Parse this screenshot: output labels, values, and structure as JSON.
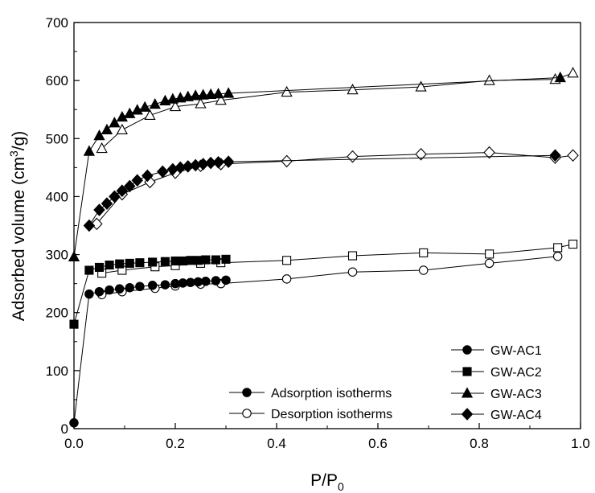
{
  "chart_data": {
    "type": "scatter",
    "xlabel": "P/P",
    "xlabel_sub": "0",
    "ylabel": "Adsorbed volume (cm",
    "ylabel_sup": "3",
    "ylabel_end": "/g)",
    "xlim": [
      0.0,
      1.0
    ],
    "ylim": [
      0,
      700
    ],
    "xticks": [
      "0.0",
      "0.2",
      "0.4",
      "0.6",
      "0.8",
      "1.0"
    ],
    "xtick_values": [
      0.0,
      0.2,
      0.4,
      0.6,
      0.8,
      1.0
    ],
    "yticks": [
      "0",
      "100",
      "200",
      "300",
      "400",
      "500",
      "600",
      "700"
    ],
    "ytick_values": [
      0,
      100,
      200,
      300,
      400,
      500,
      600,
      700
    ],
    "grid": false,
    "legend_samples": [
      "GW-AC1",
      "GW-AC2",
      "GW-AC3",
      "GW-AC4"
    ],
    "legend_branches": [
      "Adsorption isotherms",
      "Desorption isotherms"
    ],
    "legend_position": "bottom-right",
    "series": [
      {
        "name": "GW-AC1",
        "marker": "circle",
        "adsorption": {
          "x": [
            0.0,
            0.03,
            0.05,
            0.07,
            0.09,
            0.11,
            0.13,
            0.155,
            0.18,
            0.2,
            0.215,
            0.23,
            0.245,
            0.26,
            0.28,
            0.3
          ],
          "y": [
            10,
            232,
            236,
            239,
            241,
            243,
            245,
            247,
            248,
            250,
            251,
            252,
            253,
            254,
            255,
            256
          ]
        },
        "desorption": {
          "x": [
            0.955,
            0.82,
            0.69,
            0.55,
            0.42,
            0.29,
            0.25,
            0.2,
            0.16,
            0.095,
            0.055
          ],
          "y": [
            297,
            285,
            273,
            270,
            258,
            250,
            249,
            246,
            242,
            236,
            231
          ]
        }
      },
      {
        "name": "GW-AC2",
        "marker": "square",
        "adsorption": {
          "x": [
            0.0,
            0.03,
            0.05,
            0.07,
            0.09,
            0.11,
            0.13,
            0.155,
            0.18,
            0.2,
            0.215,
            0.23,
            0.245,
            0.26,
            0.28,
            0.3
          ],
          "y": [
            180,
            273,
            278,
            282,
            284,
            285,
            286,
            287,
            288,
            289,
            289,
            290,
            290,
            291,
            291,
            292
          ]
        },
        "desorption": {
          "x": [
            0.985,
            0.955,
            0.82,
            0.69,
            0.55,
            0.42,
            0.29,
            0.25,
            0.2,
            0.16,
            0.095,
            0.055
          ],
          "y": [
            318,
            312,
            301,
            303,
            298,
            290,
            286,
            285,
            281,
            279,
            273,
            268
          ]
        }
      },
      {
        "name": "GW-AC3",
        "marker": "triangle",
        "adsorption": {
          "x": [
            0.0,
            0.03,
            0.05,
            0.065,
            0.08,
            0.095,
            0.11,
            0.125,
            0.14,
            0.16,
            0.18,
            0.195,
            0.21,
            0.225,
            0.24,
            0.255,
            0.27,
            0.285,
            0.305,
            0.96
          ],
          "y": [
            296,
            478,
            505,
            515,
            527,
            537,
            543,
            549,
            554,
            559,
            565,
            568,
            570,
            572,
            574,
            575,
            576,
            577,
            578,
            605
          ]
        },
        "desorption": {
          "x": [
            0.985,
            0.95,
            0.82,
            0.685,
            0.55,
            0.42,
            0.29,
            0.25,
            0.2,
            0.15,
            0.095,
            0.055
          ],
          "y": [
            613,
            602,
            600,
            589,
            584,
            580,
            566,
            560,
            555,
            540,
            515,
            483
          ]
        }
      },
      {
        "name": "GW-AC4",
        "marker": "diamond",
        "adsorption": {
          "x": [
            0.03,
            0.05,
            0.065,
            0.08,
            0.095,
            0.11,
            0.125,
            0.145,
            0.175,
            0.195,
            0.21,
            0.225,
            0.24,
            0.255,
            0.27,
            0.285,
            0.305,
            0.95
          ],
          "y": [
            350,
            377,
            388,
            400,
            410,
            418,
            428,
            436,
            443,
            447,
            450,
            452,
            454,
            456,
            458,
            459,
            460,
            471
          ]
        },
        "desorption": {
          "x": [
            0.985,
            0.95,
            0.82,
            0.685,
            0.55,
            0.42,
            0.29,
            0.25,
            0.2,
            0.15,
            0.095,
            0.045
          ],
          "y": [
            471,
            467,
            476,
            473,
            469,
            461,
            456,
            453,
            441,
            425,
            404,
            353
          ]
        }
      }
    ]
  }
}
